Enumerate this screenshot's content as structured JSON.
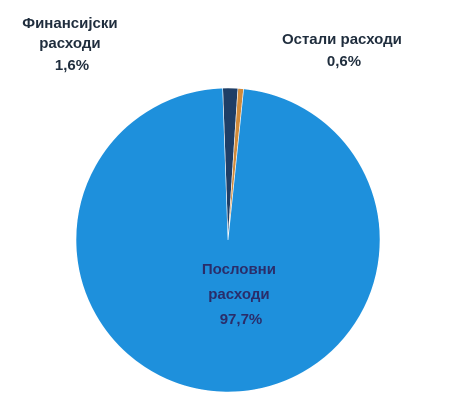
{
  "chart_data": {
    "type": "pie",
    "categories": [
      "Пословни расходи",
      "Финансијски расходи",
      "Остали расходи"
    ],
    "values": [
      97.7,
      1.6,
      0.6
    ],
    "value_labels": [
      "97,7%",
      "1,6%",
      "0,6%"
    ],
    "label_lines": [
      [
        "Пословни",
        "расходи",
        "97,7%"
      ],
      [
        "Финансијски",
        "расходи",
        "1,6%"
      ],
      [
        "Остали расходи",
        "0,6%"
      ]
    ],
    "colors": [
      "#1e90dc",
      "#1f3e66",
      "#d08a3a"
    ],
    "title": "",
    "legend": "none"
  }
}
